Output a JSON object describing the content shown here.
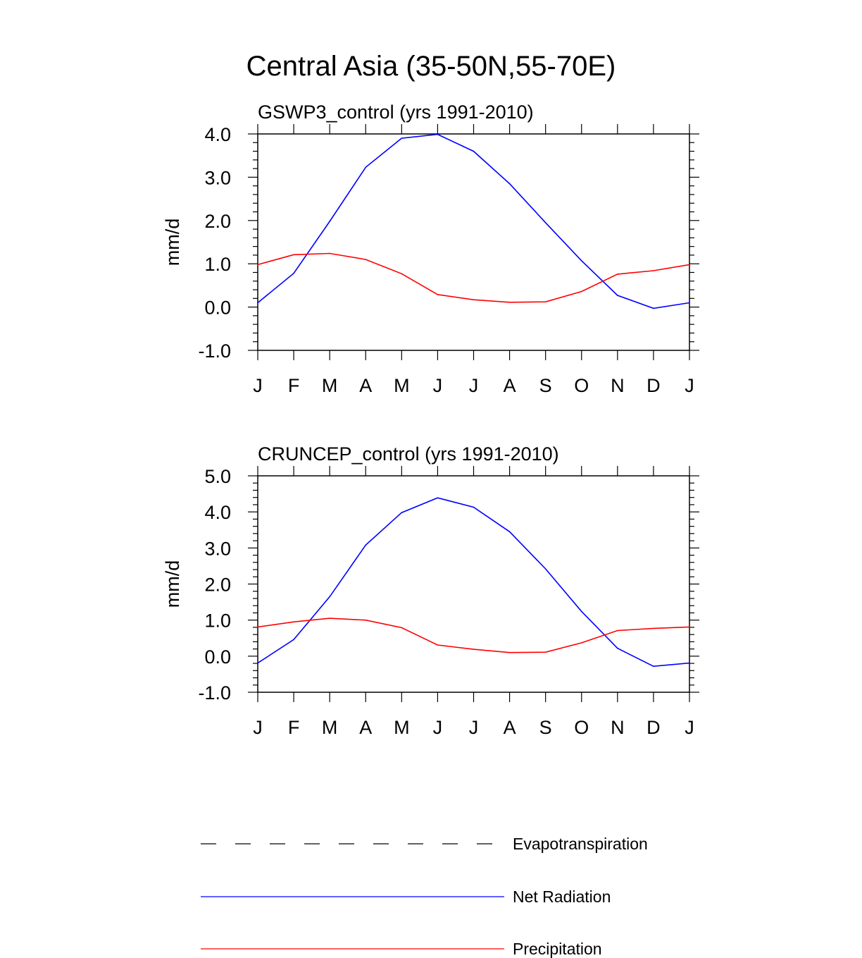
{
  "figure": {
    "title": "Central Asia (35-50N,55-70E)",
    "legend": {
      "items": [
        {
          "label": "Evapotranspiration",
          "color": "#000000",
          "dash": "dashed"
        },
        {
          "label": "Net Radiation",
          "color": "#0000ff",
          "dash": "solid"
        },
        {
          "label": "Precipitation",
          "color": "#ff0000",
          "dash": "solid"
        }
      ]
    }
  },
  "chart_data": [
    {
      "type": "line",
      "title": "GSWP3_control (yrs 1991-2010)",
      "ylabel": "mm/d",
      "xlabel": "",
      "categories": [
        "J",
        "F",
        "M",
        "A",
        "M",
        "J",
        "J",
        "A",
        "S",
        "O",
        "N",
        "D",
        "J"
      ],
      "ylim": [
        -1.0,
        4.0
      ],
      "yticks": [
        -1.0,
        0.0,
        1.0,
        2.0,
        3.0,
        4.0
      ],
      "ytick_labels": [
        "-1.0",
        "0.0",
        "1.0",
        "2.0",
        "3.0",
        "4.0"
      ],
      "grid": false,
      "series": [
        {
          "name": "Net Radiation",
          "color": "#0000ff",
          "values": [
            0.1,
            0.78,
            1.98,
            3.23,
            3.9,
            3.99,
            3.6,
            2.85,
            1.95,
            1.07,
            0.27,
            -0.03,
            0.1
          ]
        },
        {
          "name": "Precipitation",
          "color": "#ff0000",
          "values": [
            0.98,
            1.21,
            1.24,
            1.1,
            0.77,
            0.29,
            0.17,
            0.11,
            0.12,
            0.36,
            0.76,
            0.84,
            0.98
          ]
        }
      ]
    },
    {
      "type": "line",
      "title": "CRUNCEP_control (yrs 1991-2010)",
      "ylabel": "mm/d",
      "xlabel": "",
      "categories": [
        "J",
        "F",
        "M",
        "A",
        "M",
        "J",
        "J",
        "A",
        "S",
        "O",
        "N",
        "D",
        "J"
      ],
      "ylim": [
        -1.0,
        5.0
      ],
      "yticks": [
        -1.0,
        0.0,
        1.0,
        2.0,
        3.0,
        4.0,
        5.0
      ],
      "ytick_labels": [
        "-1.0",
        "0.0",
        "1.0",
        "2.0",
        "3.0",
        "4.0",
        "5.0"
      ],
      "grid": false,
      "series": [
        {
          "name": "Net Radiation",
          "color": "#0000ff",
          "values": [
            -0.19,
            0.46,
            1.65,
            3.08,
            3.98,
            4.39,
            4.13,
            3.45,
            2.42,
            1.24,
            0.22,
            -0.28,
            -0.19
          ]
        },
        {
          "name": "Precipitation",
          "color": "#ff0000",
          "values": [
            0.81,
            0.95,
            1.05,
            1.0,
            0.79,
            0.31,
            0.19,
            0.1,
            0.11,
            0.37,
            0.71,
            0.77,
            0.81
          ]
        }
      ]
    }
  ]
}
